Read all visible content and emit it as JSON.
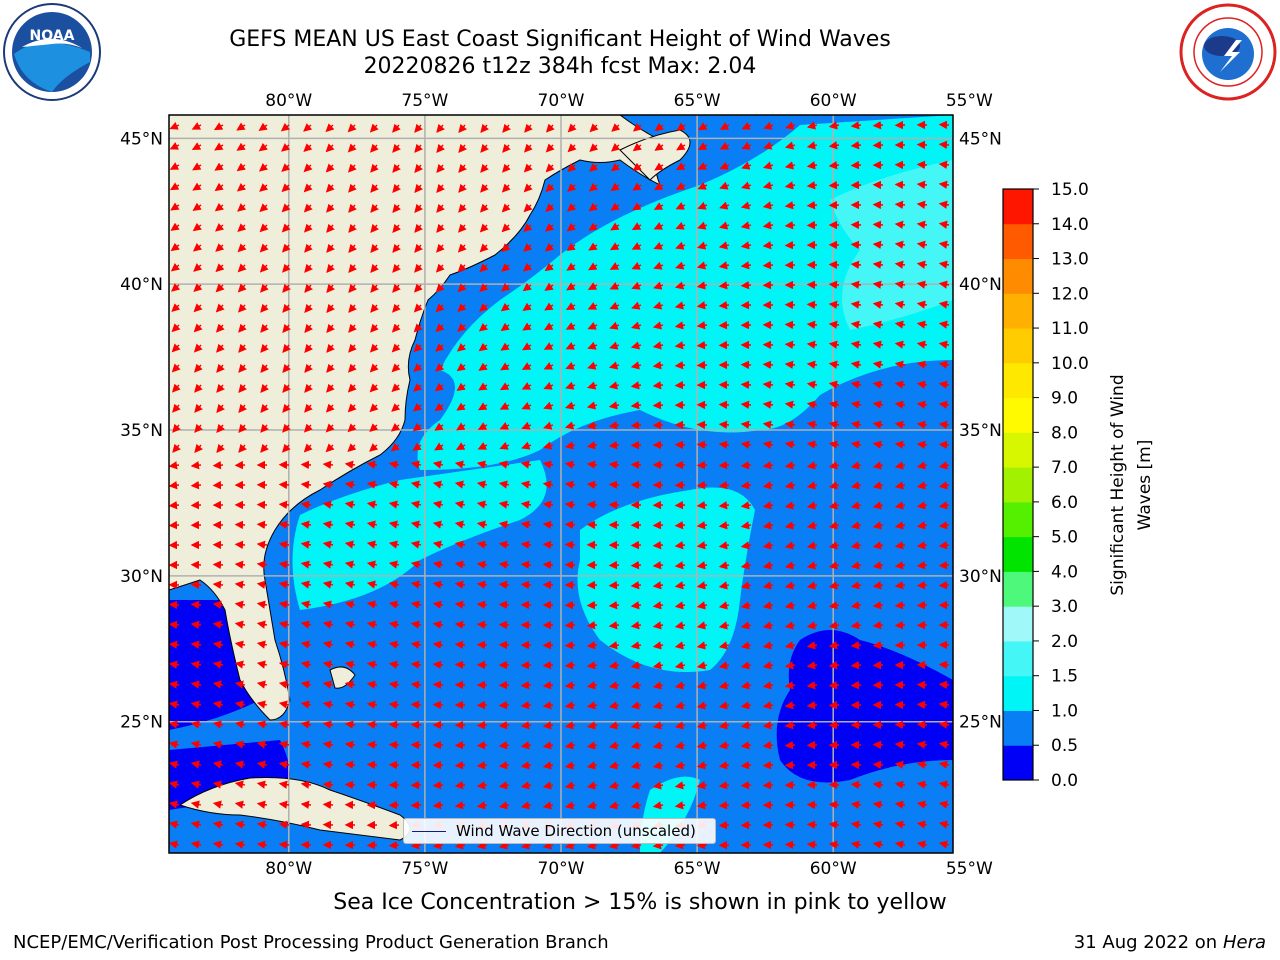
{
  "header": {
    "title_line1": "GEFS MEAN US East Coast Significant Height of Wind Waves",
    "title_line2": "20220826 t12z 384h fcst   Max: 2.04"
  },
  "logos": {
    "left": {
      "icon": "noaa-logo-icon",
      "text": "NOAA"
    },
    "right": {
      "icon": "nws-logo-icon"
    }
  },
  "map": {
    "lon_labels": [
      "80°W",
      "75°W",
      "70°W",
      "65°W",
      "60°W",
      "55°W"
    ],
    "lat_labels": [
      "45°N",
      "40°N",
      "35°N",
      "30°N",
      "25°N"
    ],
    "extent": {
      "lon": [
        -84.4,
        -55.6
      ],
      "lat": [
        20.5,
        45.8
      ]
    },
    "gridlines": true,
    "colors": {
      "land": "#efeedb",
      "coast": "#000000",
      "grid": "#b0b0b0",
      "arrow": "#ff0000"
    }
  },
  "legend": {
    "label": "Wind Wave Direction (unscaled)",
    "placement": "lower-center"
  },
  "colorbar": {
    "label_line1": "Significant Height of Wind",
    "label_line2": "Waves [m]",
    "ticks": [
      "0.0",
      "0.5",
      "1.0",
      "1.5",
      "2.0",
      "3.0",
      "4.0",
      "5.0",
      "6.0",
      "7.0",
      "8.0",
      "9.0",
      "10.0",
      "11.0",
      "12.0",
      "13.0",
      "14.0",
      "15.0"
    ],
    "colors": [
      "#0000f6",
      "#0a7ff5",
      "#00f6f6",
      "#45f6f6",
      "#a0f8f8",
      "#4df87a",
      "#00e400",
      "#55f000",
      "#a2f100",
      "#d6f700",
      "#fffa00",
      "#ffe800",
      "#ffcc00",
      "#ffb000",
      "#ff8c00",
      "#ff5a00",
      "#ff1600"
    ]
  },
  "footer": {
    "subtitle": "Sea Ice Concentration > 15% is shown in pink to yellow",
    "left": "NCEP/EMC/Verification Post Processing Product Generation Branch",
    "right_date": "31 Aug 2022 on",
    "right_host": "Hera"
  }
}
